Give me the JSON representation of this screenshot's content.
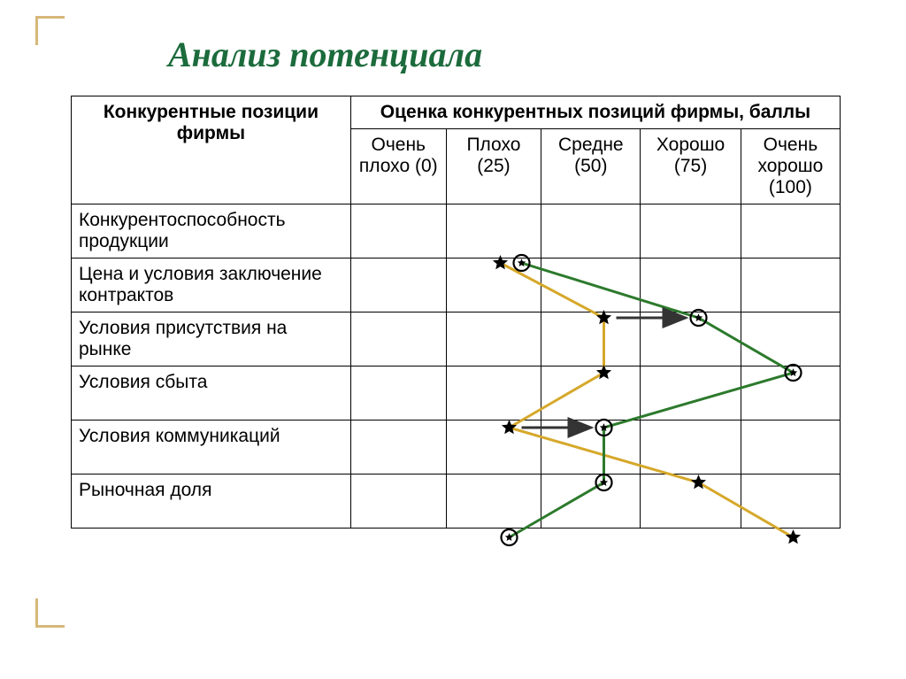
{
  "title": "Анализ потенциала",
  "headers": {
    "positions": "Конкурентные позиции фирмы",
    "scores": "Оценка конкурентных позиций фирмы, баллы",
    "levels": [
      "Очень плохо (0)",
      "Плохо (25)",
      "Средне (50)",
      "Хорошо (75)",
      "Очень хорошо (100)"
    ]
  },
  "rows": [
    "Конкурентоспособность продукции",
    "Цена и условия заключение контрактов",
    "Условия присутствия на рынке",
    "Условия сбыта",
    "Условия коммуникаций",
    "Рыночная доля"
  ],
  "layout": {
    "label_col_width": 335,
    "score_col_width": 107,
    "header_row1_h": 66,
    "header_row2_h": 92,
    "body_row_h": 62
  },
  "series": {
    "star": {
      "color": "#d6a82a",
      "points_col": [
        1,
        2,
        2,
        1,
        3,
        4
      ],
      "offsets": [
        [
          -10,
          0
        ],
        [
          0,
          0
        ],
        [
          0,
          0
        ],
        [
          0,
          0
        ],
        [
          0,
          0
        ],
        [
          0,
          0
        ]
      ]
    },
    "circle": {
      "color": "#2c7a2c",
      "points_col": [
        1,
        3,
        4,
        2,
        2,
        1
      ],
      "offsets": [
        [
          14,
          0
        ],
        [
          0,
          0
        ],
        [
          0,
          0
        ],
        [
          0,
          0
        ],
        [
          0,
          0
        ],
        [
          0,
          0
        ]
      ]
    }
  },
  "arrows": [
    {
      "row": 1,
      "from_col": 2,
      "to_col": 3,
      "color": "#333333"
    },
    {
      "row": 3,
      "from_col": 1,
      "to_col": 2,
      "color": "#333333"
    }
  ],
  "style": {
    "title_color": "#1c6b3c",
    "frame_color": "#d6b87a",
    "line_width": 3,
    "marker_size": 9
  }
}
